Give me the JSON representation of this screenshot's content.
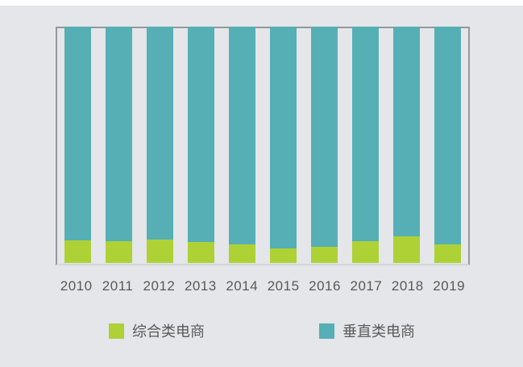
{
  "page": {
    "background_color": "#e4e6e9",
    "top_strip_color": "#ffffff",
    "frame_color": "#95989c",
    "frame_bottom_color": "#d4d7db",
    "text_color": "#595959"
  },
  "chart_data": {
    "type": "bar",
    "stacked": true,
    "percent_stacked": true,
    "title": "",
    "xlabel": "",
    "ylabel": "",
    "ylim": [
      0,
      100
    ],
    "grid": false,
    "axis_labels_visible": {
      "x": true,
      "y": false
    },
    "legend_position": "bottom",
    "categories": [
      "2010",
      "2011",
      "2012",
      "2013",
      "2014",
      "2015",
      "2016",
      "2017",
      "2018",
      "2019"
    ],
    "series": [
      {
        "name": "综合类电商",
        "color": "#aed135",
        "values": [
          9.5,
          9.2,
          9.9,
          8.8,
          7.8,
          6.1,
          6.8,
          9.2,
          11.2,
          7.8
        ]
      },
      {
        "name": "垂直类电商",
        "color": "#55afb5",
        "values": [
          90.5,
          90.8,
          90.1,
          91.2,
          92.2,
          93.9,
          93.2,
          90.8,
          88.8,
          92.2
        ]
      }
    ]
  },
  "legend": {
    "items": [
      {
        "label": "综合类电商",
        "color": "#aed135"
      },
      {
        "label": "垂直类电商",
        "color": "#55afb5"
      }
    ]
  }
}
